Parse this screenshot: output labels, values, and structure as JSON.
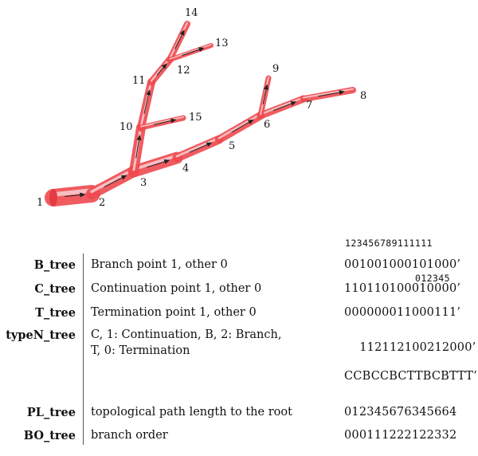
{
  "tree": {
    "nodes": [
      {
        "id": "1",
        "label": "1"
      },
      {
        "id": "2",
        "label": "2"
      },
      {
        "id": "3",
        "label": "3"
      },
      {
        "id": "4",
        "label": "4"
      },
      {
        "id": "5",
        "label": "5"
      },
      {
        "id": "6",
        "label": "6"
      },
      {
        "id": "7",
        "label": "7"
      },
      {
        "id": "8",
        "label": "8"
      },
      {
        "id": "9",
        "label": "9"
      },
      {
        "id": "10",
        "label": "10"
      },
      {
        "id": "11",
        "label": "11"
      },
      {
        "id": "12",
        "label": "12"
      },
      {
        "id": "13",
        "label": "13"
      },
      {
        "id": "14",
        "label": "14"
      },
      {
        "id": "15",
        "label": "15"
      }
    ],
    "edges": [
      [
        "1",
        "2"
      ],
      [
        "2",
        "3"
      ],
      [
        "3",
        "4"
      ],
      [
        "4",
        "5"
      ],
      [
        "5",
        "6"
      ],
      [
        "6",
        "7"
      ],
      [
        "7",
        "8"
      ],
      [
        "6",
        "9"
      ],
      [
        "3",
        "10"
      ],
      [
        "10",
        "11"
      ],
      [
        "11",
        "12"
      ],
      [
        "12",
        "14"
      ],
      [
        "12",
        "13"
      ],
      [
        "10",
        "15"
      ]
    ],
    "tube_color": "#ee4a4f"
  },
  "index_header": {
    "line1": "123456789111111",
    "line2": "012345"
  },
  "rows": [
    {
      "name": "B_tree",
      "desc": "Branch point 1, other 0",
      "code": "001001000101000’"
    },
    {
      "name": "C_tree",
      "desc": "Continuation point 1, other 0",
      "code": "110110100010000’"
    },
    {
      "name": "T_tree",
      "desc": "Termination point 1, other 0",
      "code": "000000011000111’"
    },
    {
      "name": "typeN_tree",
      "desc": "C, 1: Continuation, B, 2: Branch,",
      "desc2": "T, 0: Termination",
      "code": "112112100212000’",
      "code2": "CCBCCBCTTBCBTTT’"
    },
    {
      "name": "PL_tree",
      "desc": "topological path length to the root",
      "code": "012345676345664"
    },
    {
      "name": "BO_tree",
      "desc": "branch order",
      "code": "000111222122332"
    }
  ]
}
